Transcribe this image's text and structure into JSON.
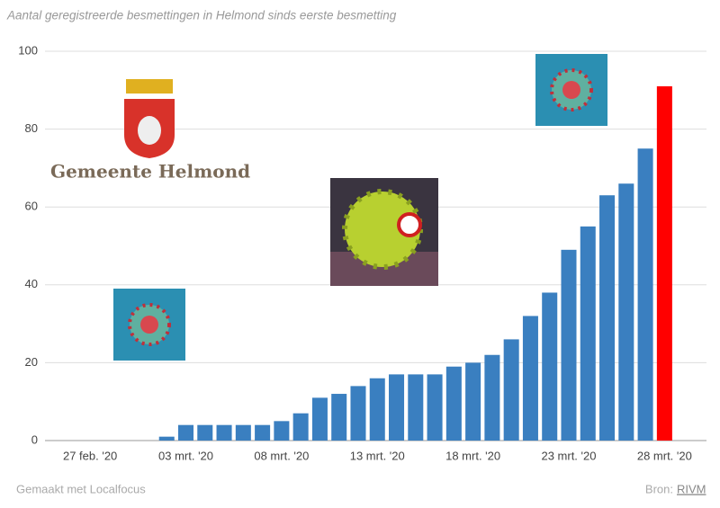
{
  "chart_data": {
    "type": "bar",
    "title": "Aantal geregistreerde besmettingen in Helmond sinds eerste besmetting",
    "categories": [
      "27 feb. '20",
      null,
      null,
      null,
      null,
      "03 mrt. '20",
      null,
      null,
      null,
      null,
      "08 mrt. '20",
      null,
      null,
      null,
      null,
      "13 mrt. '20",
      null,
      null,
      null,
      null,
      "18 mrt. '20",
      null,
      null,
      null,
      null,
      "23 mrt. '20",
      null,
      null,
      null,
      null,
      "28 mrt. '20"
    ],
    "values": [
      0,
      0,
      0,
      0,
      1,
      4,
      4,
      4,
      4,
      4,
      5,
      7,
      11,
      12,
      14,
      16,
      17,
      17,
      17,
      19,
      20,
      22,
      26,
      32,
      38,
      49,
      55,
      63,
      66,
      75,
      91
    ],
    "colors": [
      "#3a7fc0",
      "#3a7fc0",
      "#3a7fc0",
      "#3a7fc0",
      "#3a7fc0",
      "#3a7fc0",
      "#3a7fc0",
      "#3a7fc0",
      "#3a7fc0",
      "#3a7fc0",
      "#3a7fc0",
      "#3a7fc0",
      "#3a7fc0",
      "#3a7fc0",
      "#3a7fc0",
      "#3a7fc0",
      "#3a7fc0",
      "#3a7fc0",
      "#3a7fc0",
      "#3a7fc0",
      "#3a7fc0",
      "#3a7fc0",
      "#3a7fc0",
      "#3a7fc0",
      "#3a7fc0",
      "#3a7fc0",
      "#3a7fc0",
      "#3a7fc0",
      "#3a7fc0",
      "#3a7fc0",
      "#ff0000"
    ],
    "ylim": [
      0,
      100
    ],
    "yticks": [
      0,
      20,
      40,
      60,
      80,
      100
    ],
    "grid": true,
    "logo_text": "Gemeente Helmond",
    "footer": {
      "made_with": "Gemaakt met Localfocus",
      "source_label": "Bron:",
      "source": "RIVM"
    }
  }
}
